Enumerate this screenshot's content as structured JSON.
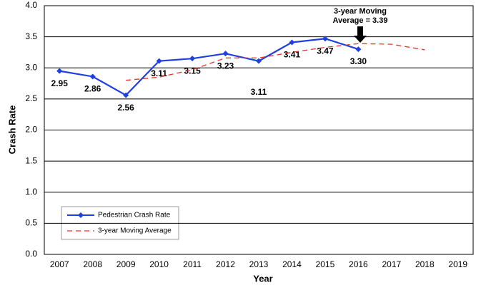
{
  "chart_data": {
    "type": "line",
    "xlabel": "Year",
    "ylabel": "Crash Rate",
    "categories": [
      "2007",
      "2008",
      "2009",
      "2010",
      "2011",
      "2012",
      "2013",
      "2014",
      "2015",
      "2016",
      "2017",
      "2018",
      "2019"
    ],
    "series": [
      {
        "name": "Pedestrian Crash Rate",
        "color": "#1f3fe0",
        "style": "solid",
        "marker": true,
        "values": [
          2.95,
          2.86,
          2.56,
          3.11,
          3.15,
          3.23,
          3.11,
          3.41,
          3.47,
          3.3,
          null,
          null,
          null
        ],
        "value_labels": [
          "2.95",
          "2.86",
          "2.56",
          "3.11",
          "3.15",
          "3.23",
          "3.11",
          "3.41",
          "3.47",
          "3.30",
          null,
          null,
          null
        ]
      },
      {
        "name": "3-year Moving Average",
        "color": "#e8332a",
        "style": "dashed",
        "marker": false,
        "values": [
          null,
          null,
          2.8,
          2.85,
          2.97,
          3.16,
          3.16,
          3.25,
          3.33,
          3.39,
          3.38,
          3.29,
          null
        ]
      }
    ],
    "annotation": [
      "3-year Moving",
      "Average = 3.39"
    ],
    "ylim": [
      0,
      4
    ],
    "yticks": [
      {
        "value": 0,
        "label": "0.0"
      },
      0.5,
      {
        "value": 1,
        "label": "1.0"
      },
      1.5,
      {
        "value": 2,
        "label": "2.0"
      },
      2.5,
      {
        "value": 3,
        "label": "3.0"
      },
      3.5,
      {
        "value": 4,
        "label": "4.0"
      }
    ],
    "grid": true,
    "legend": "lower left"
  }
}
